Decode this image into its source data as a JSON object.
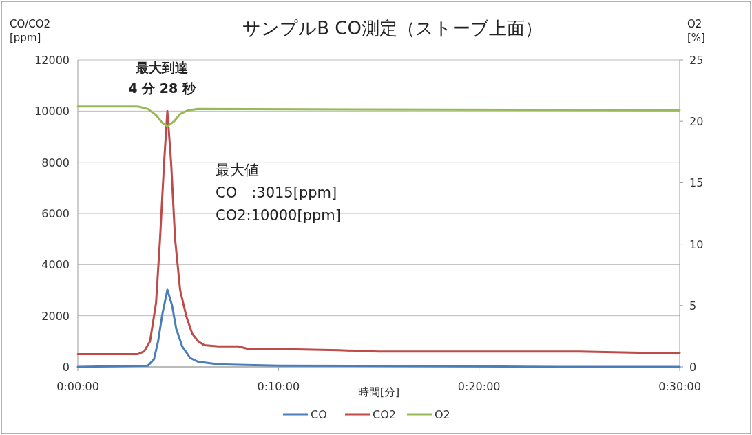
{
  "chart_data": {
    "type": "line",
    "title": "サンプルB CO測定（ストーブ上面）",
    "xlabel": "時間[分]",
    "ylabel": "CO/CO2\n[ppm]",
    "y2label": "O2\n[%]",
    "xlim": [
      0,
      0.5
    ],
    "xticks": [
      {
        "value": 0,
        "label": "0:00:00"
      },
      {
        "value": 0.16667,
        "label": "0:10:00"
      },
      {
        "value": 0.33333,
        "label": "0:20:00"
      },
      {
        "value": 0.5,
        "label": "0:30:00"
      }
    ],
    "ylim": [
      0,
      12000
    ],
    "yticks": [
      0,
      2000,
      4000,
      6000,
      8000,
      10000,
      12000
    ],
    "y2lim": [
      0,
      25
    ],
    "y2ticks": [
      0,
      5,
      10,
      15,
      20,
      25
    ],
    "grid": "y",
    "legend": "bottom",
    "marker": "none",
    "line_style": "solid",
    "annotations": [
      {
        "text": "最大到達\n4 分 28 秒",
        "x": 0.0744,
        "y": 10000
      },
      "最大値\nCO　:3015[ppm]\nCO2:10000[ppm]"
    ],
    "series": [
      {
        "name": "CO",
        "color": "#4a7ebb",
        "x": [
          0,
          0.0583,
          0.0633,
          0.0667,
          0.07,
          0.0744,
          0.0783,
          0.0817,
          0.0867,
          0.0933,
          0.1,
          0.1167,
          0.1333,
          0.1667,
          0.3333,
          0.4,
          0.5
        ],
        "values": [
          0,
          50,
          300,
          1000,
          2000,
          3015,
          2400,
          1500,
          800,
          350,
          200,
          100,
          80,
          50,
          20,
          0,
          0
        ]
      },
      {
        "name": "CO2",
        "color": "#be4b48",
        "x": [
          0,
          0.05,
          0.055,
          0.06,
          0.065,
          0.0683,
          0.0717,
          0.0744,
          0.0775,
          0.0808,
          0.085,
          0.09,
          0.095,
          0.1,
          0.105,
          0.1167,
          0.1333,
          0.1417,
          0.1667,
          0.2167,
          0.25,
          0.3333,
          0.4167,
          0.4667,
          0.5
        ],
        "values": [
          500,
          500,
          600,
          1000,
          2500,
          5000,
          8000,
          10000,
          8000,
          5000,
          3000,
          2000,
          1300,
          1000,
          850,
          800,
          800,
          700,
          700,
          650,
          600,
          600,
          600,
          550,
          550
        ]
      },
      {
        "name": "O2",
        "color": "#98b954",
        "axis": "y2",
        "x": [
          0,
          0.05,
          0.0583,
          0.065,
          0.07,
          0.0744,
          0.08,
          0.085,
          0.0917,
          0.1,
          0.5
        ],
        "values": [
          21.2,
          21.2,
          21.0,
          20.5,
          19.9,
          19.6,
          20.0,
          20.6,
          20.9,
          21.0,
          20.9
        ]
      }
    ]
  }
}
